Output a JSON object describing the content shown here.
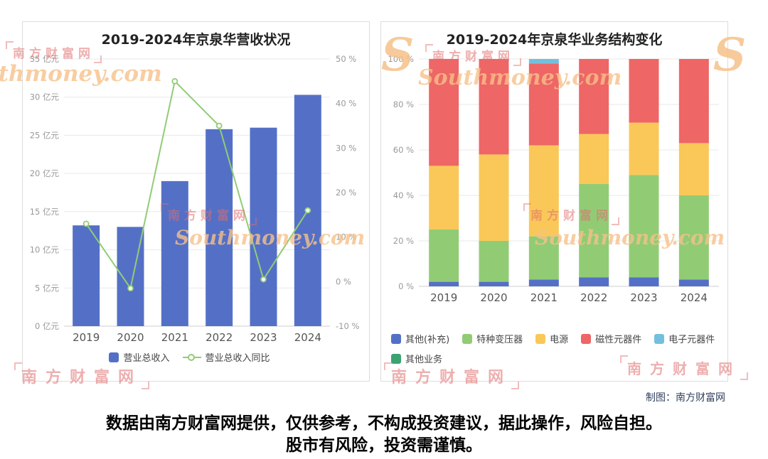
{
  "chart_data": [
    {
      "type": "bar",
      "subtype": "bar+line-combo",
      "title": "2019-2024年京泉华营收状况",
      "categories": [
        "2019",
        "2020",
        "2021",
        "2022",
        "2023",
        "2024"
      ],
      "series": [
        {
          "name": "营业总收入",
          "kind": "bar",
          "axis": "left",
          "unit": "亿元",
          "color": "#5470c6",
          "values": [
            13.2,
            13.0,
            19.0,
            25.8,
            26.0,
            30.3
          ]
        },
        {
          "name": "营业总收入同比",
          "kind": "line",
          "axis": "right",
          "unit": "%",
          "color": "#91cc75",
          "values": [
            13,
            -1.5,
            45,
            35,
            0.5,
            16
          ]
        }
      ],
      "left_axis": {
        "min": 0,
        "max": 35,
        "step": 5,
        "suffix": " 亿元"
      },
      "right_axis": {
        "min": -10,
        "max": 50,
        "step": 10,
        "suffix": " %"
      },
      "grid": true,
      "legend_position": "bottom-center"
    },
    {
      "type": "bar",
      "subtype": "stacked-percent",
      "title": "2019-2024年京泉华业务结构变化",
      "categories": [
        "2019",
        "2020",
        "2021",
        "2022",
        "2023",
        "2024"
      ],
      "series": [
        {
          "name": "其他(补充)",
          "kind": "bar",
          "color": "#5470c6",
          "values": [
            2,
            2,
            3,
            4,
            4,
            3
          ]
        },
        {
          "name": "特种变压器",
          "kind": "bar",
          "color": "#91cc75",
          "values": [
            23,
            18,
            19,
            41,
            45,
            37
          ]
        },
        {
          "name": "电源",
          "kind": "bar",
          "color": "#fac858",
          "values": [
            28,
            38,
            40,
            22,
            23,
            23
          ]
        },
        {
          "name": "磁性元器件",
          "kind": "bar",
          "color": "#ee6666",
          "values": [
            47,
            42,
            36,
            33,
            28,
            37
          ]
        },
        {
          "name": "电子元器件",
          "kind": "bar",
          "color": "#73c0de",
          "values": [
            0,
            0,
            2,
            0,
            0,
            0
          ]
        },
        {
          "name": "其他业务",
          "kind": "bar",
          "color": "#3ba272",
          "values": [
            0,
            0,
            0,
            0,
            0,
            0
          ]
        }
      ],
      "y_axis": {
        "min": 0,
        "max": 100,
        "step": 20,
        "suffix": " %"
      },
      "grid": true,
      "legend_position": "bottom-left"
    }
  ],
  "attribution": "制图：南方财富网",
  "disclaimer": {
    "line1": "数据由南方财富网提供，仅供参考，不构成投资建议，据此操作，风险自担。",
    "line2": "股市有风险，投资需谨慎。"
  },
  "watermark": {
    "stamp": "南方财富网",
    "brand": "Southmoney.com",
    "brand_initial": "S"
  }
}
